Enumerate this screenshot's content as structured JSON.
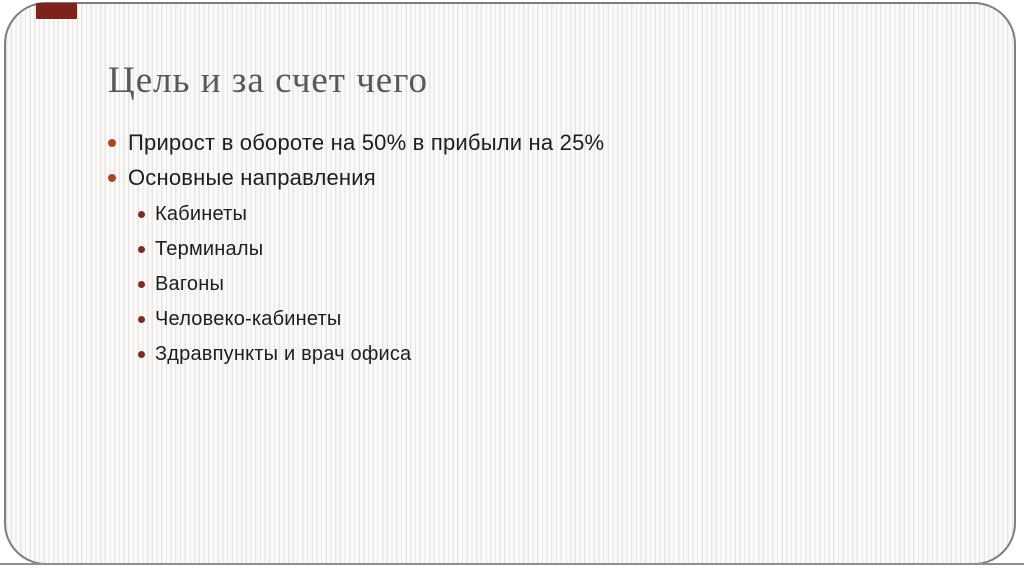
{
  "slide": {
    "title": "Цель и за счет чего",
    "bullets": [
      {
        "level": 1,
        "text": "Прирост в обороте на 50% в прибыли на 25%"
      },
      {
        "level": 1,
        "text": "Основные направления"
      },
      {
        "level": 2,
        "text": "Кабинеты"
      },
      {
        "level": 2,
        "text": "Терминалы"
      },
      {
        "level": 2,
        "text": "Вагоны"
      },
      {
        "level": 2,
        "text": "Человеко-кабинеты"
      },
      {
        "level": 2,
        "text": "Здравпункты и врач офиса"
      }
    ]
  },
  "theme": {
    "title_color": "#5a5857",
    "text_color": "#1e1e1e",
    "bullet_level1_color": "#a54a28",
    "bullet_level2_color": "#7c2d23",
    "frame_border_color": "#7e7e7e",
    "bottom_line_color": "#8f8f8f",
    "accent_rect_color": "#7e231a",
    "stripe_color": "#e8e6e3",
    "background_color": "#fbfaf8"
  }
}
